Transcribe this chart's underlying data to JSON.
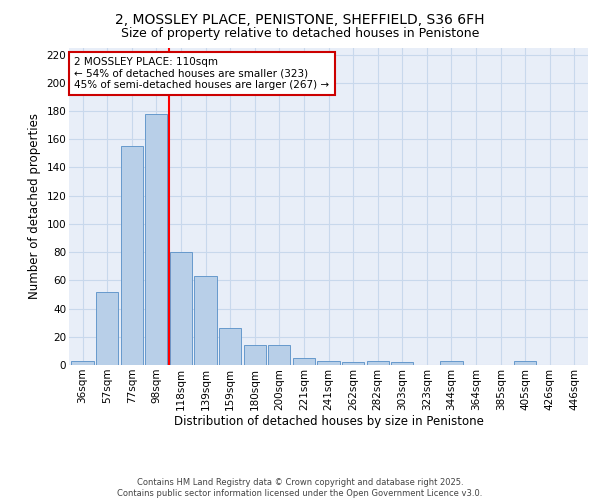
{
  "title_line1": "2, MOSSLEY PLACE, PENISTONE, SHEFFIELD, S36 6FH",
  "title_line2": "Size of property relative to detached houses in Penistone",
  "xlabel": "Distribution of detached houses by size in Penistone",
  "ylabel": "Number of detached properties",
  "categories": [
    "36sqm",
    "57sqm",
    "77sqm",
    "98sqm",
    "118sqm",
    "139sqm",
    "159sqm",
    "180sqm",
    "200sqm",
    "221sqm",
    "241sqm",
    "262sqm",
    "282sqm",
    "303sqm",
    "323sqm",
    "344sqm",
    "364sqm",
    "385sqm",
    "405sqm",
    "426sqm",
    "446sqm"
  ],
  "values": [
    3,
    52,
    155,
    178,
    80,
    63,
    26,
    14,
    14,
    5,
    3,
    2,
    3,
    2,
    0,
    3,
    0,
    0,
    3,
    0,
    0
  ],
  "bar_color": "#b8cfe8",
  "bar_edge_color": "#6699cc",
  "red_line_x": 3.5,
  "annotation_text": "2 MOSSLEY PLACE: 110sqm\n← 54% of detached houses are smaller (323)\n45% of semi-detached houses are larger (267) →",
  "annotation_box_facecolor": "#ffffff",
  "annotation_box_edgecolor": "#cc0000",
  "footer_line1": "Contains HM Land Registry data © Crown copyright and database right 2025.",
  "footer_line2": "Contains public sector information licensed under the Open Government Licence v3.0.",
  "ylim": [
    0,
    225
  ],
  "yticks": [
    0,
    20,
    40,
    60,
    80,
    100,
    120,
    140,
    160,
    180,
    200,
    220
  ],
  "grid_color": "#c8d8ec",
  "background_color": "#e8eef8",
  "title_fontsize": 10,
  "subtitle_fontsize": 9,
  "axis_label_fontsize": 8.5,
  "tick_fontsize": 7.5,
  "annotation_fontsize": 7.5
}
